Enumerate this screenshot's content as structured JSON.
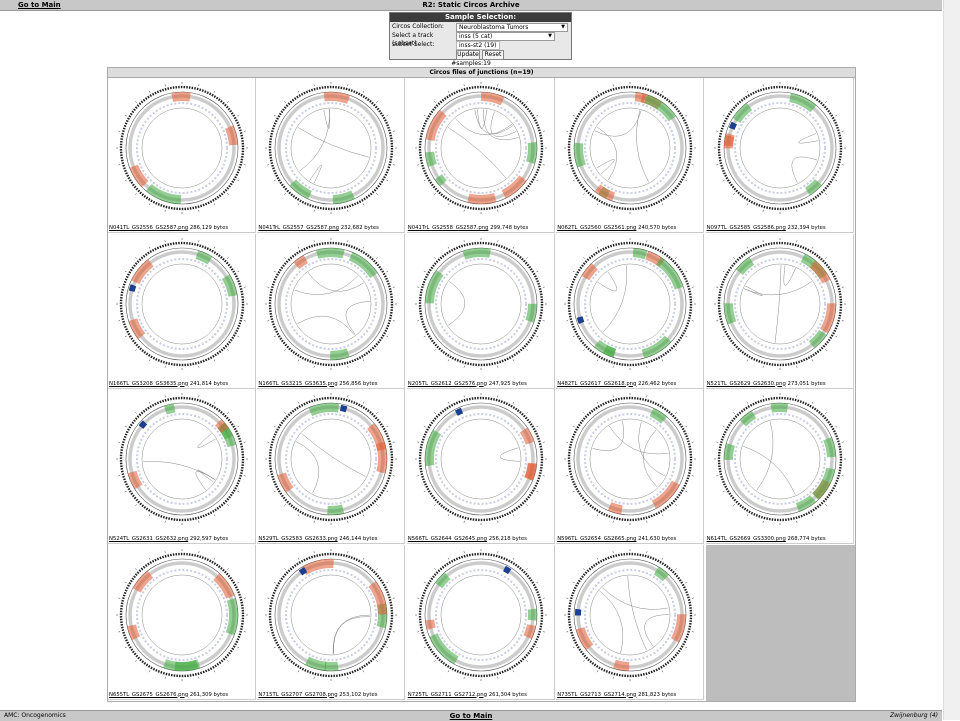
{
  "header": {
    "go_to_main": "Go to Main",
    "title": "R2: Static Circos Archive"
  },
  "panel": {
    "title": "Sample Selection:",
    "collection_label": "Circos Collection:",
    "collection_value": "Neuroblastoma Tumors",
    "track_label": "Select a track (subset)",
    "track_value": "inss (5 cat)",
    "subset_label": "subset Select:",
    "subset_value": "inss-st2 (19)",
    "update_label": "Update",
    "reset_label": "Reset"
  },
  "samples_text": "#samples:19",
  "grid_title": "Circos files of junctions (n=19)",
  "colors": {
    "gain": "#3aa83a",
    "loss": "#e0572e",
    "deep": "#1c3f8f",
    "blue": "#6c8fcf",
    "link": "#888888"
  },
  "files": [
    {
      "name": "N041TL_GS2556_GS2587.png",
      "size": "286,129 bytes"
    },
    {
      "name": "N041TrL_GS2557_GS2587.png",
      "size": "232,682 bytes"
    },
    {
      "name": "N041TrL_GS2558_GS2587.png",
      "size": "299,748 bytes"
    },
    {
      "name": "N062TL_GS2560_GS2561.png",
      "size": "240,570 bytes"
    },
    {
      "name": "N097TL_GS2585_GS2586.png",
      "size": "232,394 bytes"
    },
    {
      "name": "N166TL_GS3208_GS3635.png",
      "size": "241,814 bytes"
    },
    {
      "name": "N166TL_GS3215_GS3635.png",
      "size": "256,856 bytes"
    },
    {
      "name": "N205TL_GS2612_GS2576.png",
      "size": "247,925 bytes"
    },
    {
      "name": "N482TL_GS2617_GS2618.png",
      "size": "226,462 bytes"
    },
    {
      "name": "N521TL_GS2629_GS2630.png",
      "size": "273,051 bytes"
    },
    {
      "name": "N524TL_GS2631_GS2632.png",
      "size": "292,597 bytes"
    },
    {
      "name": "N529TL_GS2583_GS2633.png",
      "size": "246,144 bytes"
    },
    {
      "name": "N566TL_GS2644_GS2645.png",
      "size": "256,218 bytes"
    },
    {
      "name": "N596TL_GS2654_GS2665.png",
      "size": "241,630 bytes"
    },
    {
      "name": "N614TL_GS2669_GS3300.png",
      "size": "268,774 bytes"
    },
    {
      "name": "N655TL_GS2675_GS2676.png",
      "size": "261,309 bytes"
    },
    {
      "name": "N715TL_GS2707_GS2708.png",
      "size": "253,102 bytes"
    },
    {
      "name": "N725TL_GS2711_GS2712.png",
      "size": "261,304 bytes"
    },
    {
      "name": "N735TL_GS2713_GS2714.png",
      "size": "281,823 bytes"
    }
  ],
  "footer": {
    "left": "AMC: Oncogenomics",
    "center": "Go to Main",
    "right": "Zwijnenburg (4)"
  }
}
